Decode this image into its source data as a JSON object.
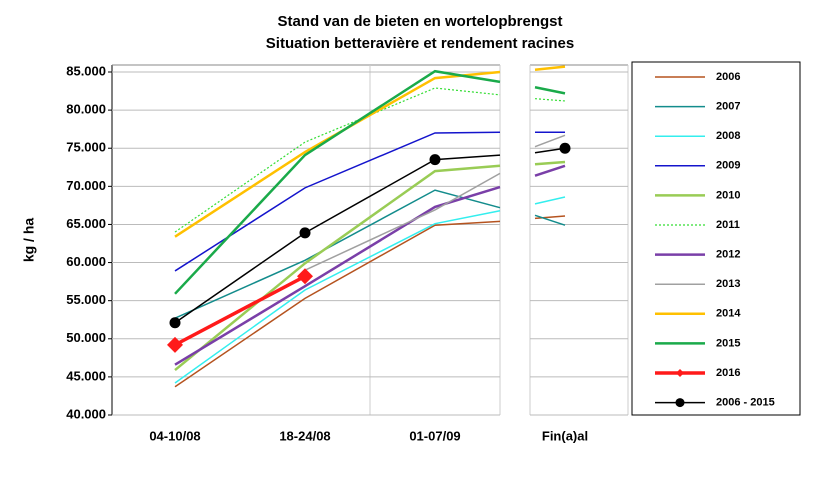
{
  "chart_data": {
    "type": "line",
    "title": "Stand van de bieten en wortelopbrengst",
    "subtitle": "Situation betteravière et rendement racines",
    "y_label": "kg / ha",
    "categories": [
      "04-10/08",
      "18-24/08",
      "01-07/09",
      null,
      null,
      null,
      "Fin(a)al"
    ],
    "ylim": [
      40000,
      85000
    ],
    "yticks": [
      {
        "value": 40000,
        "label": "40.000"
      },
      {
        "value": 45000,
        "label": "45.000"
      },
      {
        "value": 50000,
        "label": "50.000"
      },
      {
        "value": 55000,
        "label": "55.000"
      },
      {
        "value": 60000,
        "label": "60.000"
      },
      {
        "value": 65000,
        "label": "65.000"
      },
      {
        "value": 70000,
        "label": "70.000"
      },
      {
        "value": 75000,
        "label": "75.000"
      },
      {
        "value": 80000,
        "label": "80.000"
      },
      {
        "value": 85000,
        "label": "85.000"
      }
    ],
    "grid": true,
    "legend": "right",
    "series": [
      {
        "name": "2006",
        "color": "#b5531f",
        "width": 1.5,
        "values": [
          43700,
          55300,
          64900,
          65400,
          null,
          65800,
          66100
        ]
      },
      {
        "name": "2007",
        "color": "#138c8c",
        "width": 1.5,
        "values": [
          52700,
          60300,
          69500,
          67200,
          null,
          66200,
          64900
        ]
      },
      {
        "name": "2008",
        "color": "#33eeee",
        "width": 1.5,
        "values": [
          44200,
          56400,
          65100,
          66800,
          null,
          67700,
          68600
        ]
      },
      {
        "name": "2009",
        "color": "#1414cc",
        "width": 1.5,
        "values": [
          58900,
          69800,
          77000,
          77100,
          null,
          77100,
          77100
        ]
      },
      {
        "name": "2010",
        "color": "#99cc55",
        "width": 2.5,
        "values": [
          45900,
          59900,
          72000,
          72700,
          null,
          72900,
          73200
        ]
      },
      {
        "name": "2011",
        "color": "#33dd33",
        "width": 1.2,
        "dash": "2,2",
        "values": [
          64000,
          75800,
          82900,
          82000,
          null,
          81500,
          81200
        ]
      },
      {
        "name": "2012",
        "color": "#7a3fa8",
        "width": 2.5,
        "values": [
          46600,
          56900,
          67300,
          69900,
          null,
          71400,
          72700
        ]
      },
      {
        "name": "2013",
        "color": "#a0a0a0",
        "width": 1.5,
        "values": [
          null,
          59000,
          66900,
          71700,
          null,
          75200,
          76700
        ]
      },
      {
        "name": "2014",
        "color": "#ffc000",
        "width": 2.5,
        "values": [
          63400,
          74500,
          84200,
          85000,
          null,
          85300,
          85700
        ]
      },
      {
        "name": "2015",
        "color": "#1aaa4a",
        "width": 2.5,
        "values": [
          55900,
          74100,
          85100,
          83700,
          null,
          83000,
          82200
        ]
      },
      {
        "name": "2016",
        "color": "#ff1a1a",
        "width": 3.5,
        "marker": "diamond",
        "values": [
          49200,
          58200,
          null,
          null,
          null,
          null,
          null
        ]
      },
      {
        "name": "2006 - 2015",
        "color": "#000000",
        "width": 1.5,
        "marker": "circle",
        "values": [
          52100,
          63900,
          73500,
          74100,
          null,
          74400,
          75000
        ]
      }
    ]
  }
}
